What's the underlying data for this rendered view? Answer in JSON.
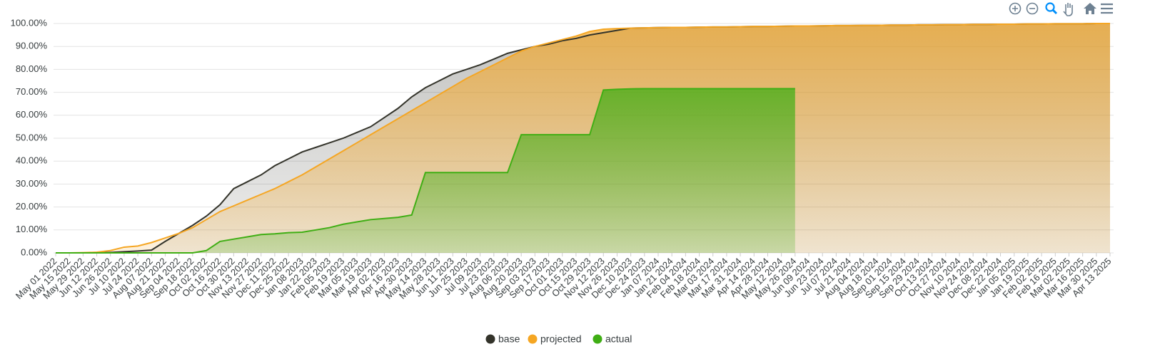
{
  "chart_data": {
    "type": "area",
    "categories": [
      "May 01 2022",
      "May 15 2022",
      "May 29 2022",
      "Jun 12 2022",
      "Jun 26 2022",
      "Jul 10 2022",
      "Jul 24 2022",
      "Aug 07 2022",
      "Aug 21 2022",
      "Sep 04 2022",
      "Sep 18 2022",
      "Oct 02 2022",
      "Oct 16 2022",
      "Oct 30 2022",
      "Nov 13 2022",
      "Nov 27 2022",
      "Dec 11 2022",
      "Dec 25 2022",
      "Jan 08 2023",
      "Jan 22 2023",
      "Feb 05 2023",
      "Feb 19 2023",
      "Mar 05 2023",
      "Mar 19 2023",
      "Apr 02 2023",
      "Apr 16 2023",
      "Apr 30 2023",
      "May 14 2023",
      "May 28 2023",
      "Jun 11 2023",
      "Jun 25 2023",
      "Jul 09 2023",
      "Jul 23 2023",
      "Aug 06 2023",
      "Aug 20 2023",
      "Sep 03 2023",
      "Sep 17 2023",
      "Oct 01 2023",
      "Oct 15 2023",
      "Oct 29 2023",
      "Nov 12 2023",
      "Nov 26 2023",
      "Dec 10 2023",
      "Dec 24 2023",
      "Jan 07 2024",
      "Jan 21 2024",
      "Feb 04 2024",
      "Feb 18 2024",
      "Mar 03 2024",
      "Mar 17 2024",
      "Mar 31 2024",
      "Apr 14 2024",
      "Apr 28 2024",
      "May 12 2024",
      "May 26 2024",
      "Jun 09 2024",
      "Jun 23 2024",
      "Jul 07 2024",
      "Jul 21 2024",
      "Aug 04 2024",
      "Aug 18 2024",
      "Sep 01 2024",
      "Sep 15 2024",
      "Sep 29 2024",
      "Oct 13 2024",
      "Oct 27 2024",
      "Nov 10 2024",
      "Nov 24 2024",
      "Dec 08 2024",
      "Dec 22 2024",
      "Jan 05 2025",
      "Jan 19 2025",
      "Feb 02 2025",
      "Feb 16 2025",
      "Mar 02 2025",
      "Mar 16 2025",
      "Mar 30 2025",
      "Apr 13 2025"
    ],
    "series": [
      {
        "name": "base",
        "color": "#33332a",
        "values": [
          0,
          0,
          0,
          0,
          0.2,
          0.5,
          0.8,
          1.2,
          5,
          8.5,
          12,
          16,
          21,
          28,
          31,
          34,
          38,
          41,
          44,
          46,
          48,
          50,
          52.5,
          55,
          59,
          63,
          68,
          72,
          75,
          78,
          80,
          82,
          84.5,
          87,
          88.5,
          90,
          91,
          92.5,
          93.5,
          95,
          96,
          97,
          98,
          98.1,
          98.2,
          98.3,
          98.3,
          98.4,
          98.5,
          98.5,
          98.6,
          98.7,
          98.7,
          98.8,
          98.9,
          98.9,
          99.0,
          99.1,
          99.1,
          99.2,
          99.2,
          99.3,
          99.3,
          99.4,
          99.4,
          99.5,
          99.5,
          99.6,
          99.6,
          99.7,
          99.7,
          99.8,
          99.8,
          99.9,
          99.9,
          99.9,
          100,
          100
        ]
      },
      {
        "name": "projected",
        "color": "#f5a623",
        "values": [
          0,
          0,
          0.1,
          0.3,
          1,
          2.5,
          3,
          4.5,
          6.5,
          8.5,
          11,
          14.5,
          18,
          20.5,
          23,
          25.5,
          28,
          31,
          34,
          37.5,
          41,
          44.5,
          48,
          51.5,
          55,
          58.5,
          62,
          65.5,
          69,
          72.5,
          76,
          79,
          82,
          85,
          88,
          90,
          91.5,
          93,
          94.5,
          96.5,
          97.5,
          97.8,
          98,
          98.1,
          98.2,
          98.3,
          98.3,
          98.4,
          98.5,
          98.5,
          98.6,
          98.7,
          98.7,
          98.8,
          98.9,
          98.9,
          99.0,
          99.1,
          99.1,
          99.2,
          99.2,
          99.3,
          99.3,
          99.4,
          99.4,
          99.5,
          99.5,
          99.6,
          99.6,
          99.7,
          99.7,
          99.8,
          99.8,
          99.9,
          99.9,
          99.9,
          100,
          100
        ]
      },
      {
        "name": "actual",
        "color": "#3fae14",
        "values": [
          0,
          0,
          0,
          0,
          0,
          0,
          0,
          0,
          0,
          0,
          0,
          1,
          5,
          6,
          7,
          8,
          8.3,
          8.8,
          9,
          10,
          11,
          12.5,
          13.5,
          14.5,
          15,
          15.5,
          16.5,
          35,
          35,
          35,
          35,
          35,
          35,
          35,
          51.5,
          51.5,
          51.5,
          51.5,
          51.5,
          51.5,
          71,
          71.3,
          71.5,
          71.6,
          71.6,
          71.6,
          71.6,
          71.6,
          71.6,
          71.6,
          71.6,
          71.6,
          71.6,
          71.6,
          71.6,
          null,
          null,
          null,
          null,
          null,
          null,
          null,
          null,
          null,
          null,
          null,
          null,
          null,
          null,
          null,
          null,
          null,
          null,
          null,
          null,
          null,
          null,
          null
        ]
      }
    ],
    "ylim": [
      0,
      100
    ],
    "yticks": [
      {
        "value": 0,
        "label": "0.00%"
      },
      {
        "value": 10,
        "label": "10.00%"
      },
      {
        "value": 20,
        "label": "20.00%"
      },
      {
        "value": 30,
        "label": "30.00%"
      },
      {
        "value": 40,
        "label": "40.00%"
      },
      {
        "value": 50,
        "label": "50.00%"
      },
      {
        "value": 60,
        "label": "60.00%"
      },
      {
        "value": 70,
        "label": "70.00%"
      },
      {
        "value": 80,
        "label": "80.00%"
      },
      {
        "value": 90,
        "label": "90.00%"
      },
      {
        "value": 100,
        "label": "100.00%"
      }
    ],
    "grid": true
  }
}
